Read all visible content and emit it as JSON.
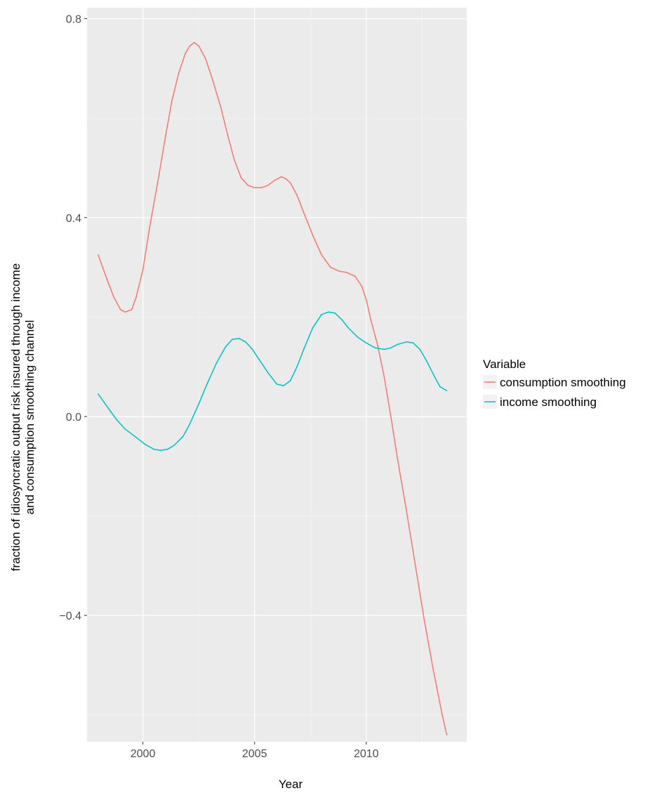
{
  "chart_data": {
    "type": "line",
    "title": "",
    "xlabel": "Year",
    "ylabel_lines": [
      "fraction of idiosyncratic output risk insured through income",
      "and consumption smoothing channel"
    ],
    "xlim": [
      1997.5,
      2014.5
    ],
    "ylim": [
      -0.654,
      0.822
    ],
    "x_ticks": [
      2000,
      2005,
      2010
    ],
    "x_tick_labels": [
      "2000",
      "2005",
      "2010"
    ],
    "y_ticks": [
      -0.4,
      0.0,
      0.4,
      0.8
    ],
    "y_tick_labels": [
      "−0.4",
      "0.0",
      "0.4",
      "0.8"
    ],
    "grid": true,
    "legend": {
      "title": "Variable",
      "placement": "right"
    },
    "series": [
      {
        "name": "consumption smoothing",
        "color": "#F8766D",
        "x": [
          1998.0,
          1998.4,
          1998.7,
          1999.0,
          1999.2,
          1999.5,
          1999.7,
          2000.0,
          2000.3,
          2000.7,
          2001.0,
          2001.3,
          2001.6,
          2001.9,
          2002.1,
          2002.3,
          2002.5,
          2002.8,
          2003.1,
          2003.5,
          2003.8,
          2004.1,
          2004.4,
          2004.7,
          2005.0,
          2005.3,
          2005.6,
          2005.9,
          2006.2,
          2006.4,
          2006.6,
          2006.9,
          2007.2,
          2007.6,
          2008.0,
          2008.4,
          2008.8,
          2009.1,
          2009.5,
          2009.8,
          2010.0,
          2010.2,
          2010.5,
          2010.8,
          2011.1,
          2011.4,
          2011.8,
          2012.2,
          2012.6,
          2013.0,
          2013.4,
          2013.6
        ],
        "y": [
          0.325,
          0.275,
          0.24,
          0.215,
          0.21,
          0.215,
          0.24,
          0.295,
          0.38,
          0.48,
          0.56,
          0.635,
          0.69,
          0.73,
          0.745,
          0.752,
          0.745,
          0.72,
          0.68,
          0.62,
          0.565,
          0.515,
          0.48,
          0.465,
          0.46,
          0.46,
          0.465,
          0.475,
          0.482,
          0.478,
          0.47,
          0.445,
          0.41,
          0.365,
          0.325,
          0.3,
          0.292,
          0.29,
          0.282,
          0.262,
          0.235,
          0.195,
          0.145,
          0.08,
          0.0,
          -0.085,
          -0.19,
          -0.3,
          -0.41,
          -0.51,
          -0.6,
          -0.64
        ]
      },
      {
        "name": "income smoothing",
        "color": "#00BFC4",
        "x": [
          1998.0,
          1998.4,
          1998.8,
          1999.2,
          1999.7,
          2000.1,
          2000.5,
          2000.8,
          2001.1,
          2001.4,
          2001.8,
          2002.1,
          2002.5,
          2002.9,
          2003.3,
          2003.7,
          2004.0,
          2004.3,
          2004.6,
          2004.9,
          2005.2,
          2005.6,
          2006.0,
          2006.3,
          2006.6,
          2006.9,
          2007.2,
          2007.6,
          2008.0,
          2008.3,
          2008.6,
          2008.9,
          2009.2,
          2009.6,
          2010.0,
          2010.4,
          2010.8,
          2011.1,
          2011.4,
          2011.8,
          2012.1,
          2012.4,
          2012.7,
          2013.0,
          2013.3,
          2013.6
        ],
        "y": [
          0.045,
          0.02,
          -0.005,
          -0.025,
          -0.042,
          -0.056,
          -0.066,
          -0.068,
          -0.066,
          -0.058,
          -0.04,
          -0.015,
          0.025,
          0.068,
          0.108,
          0.14,
          0.155,
          0.157,
          0.15,
          0.135,
          0.115,
          0.088,
          0.065,
          0.062,
          0.072,
          0.1,
          0.135,
          0.178,
          0.205,
          0.21,
          0.208,
          0.195,
          0.178,
          0.16,
          0.148,
          0.138,
          0.135,
          0.138,
          0.145,
          0.15,
          0.148,
          0.135,
          0.112,
          0.085,
          0.06,
          0.052
        ]
      }
    ]
  }
}
